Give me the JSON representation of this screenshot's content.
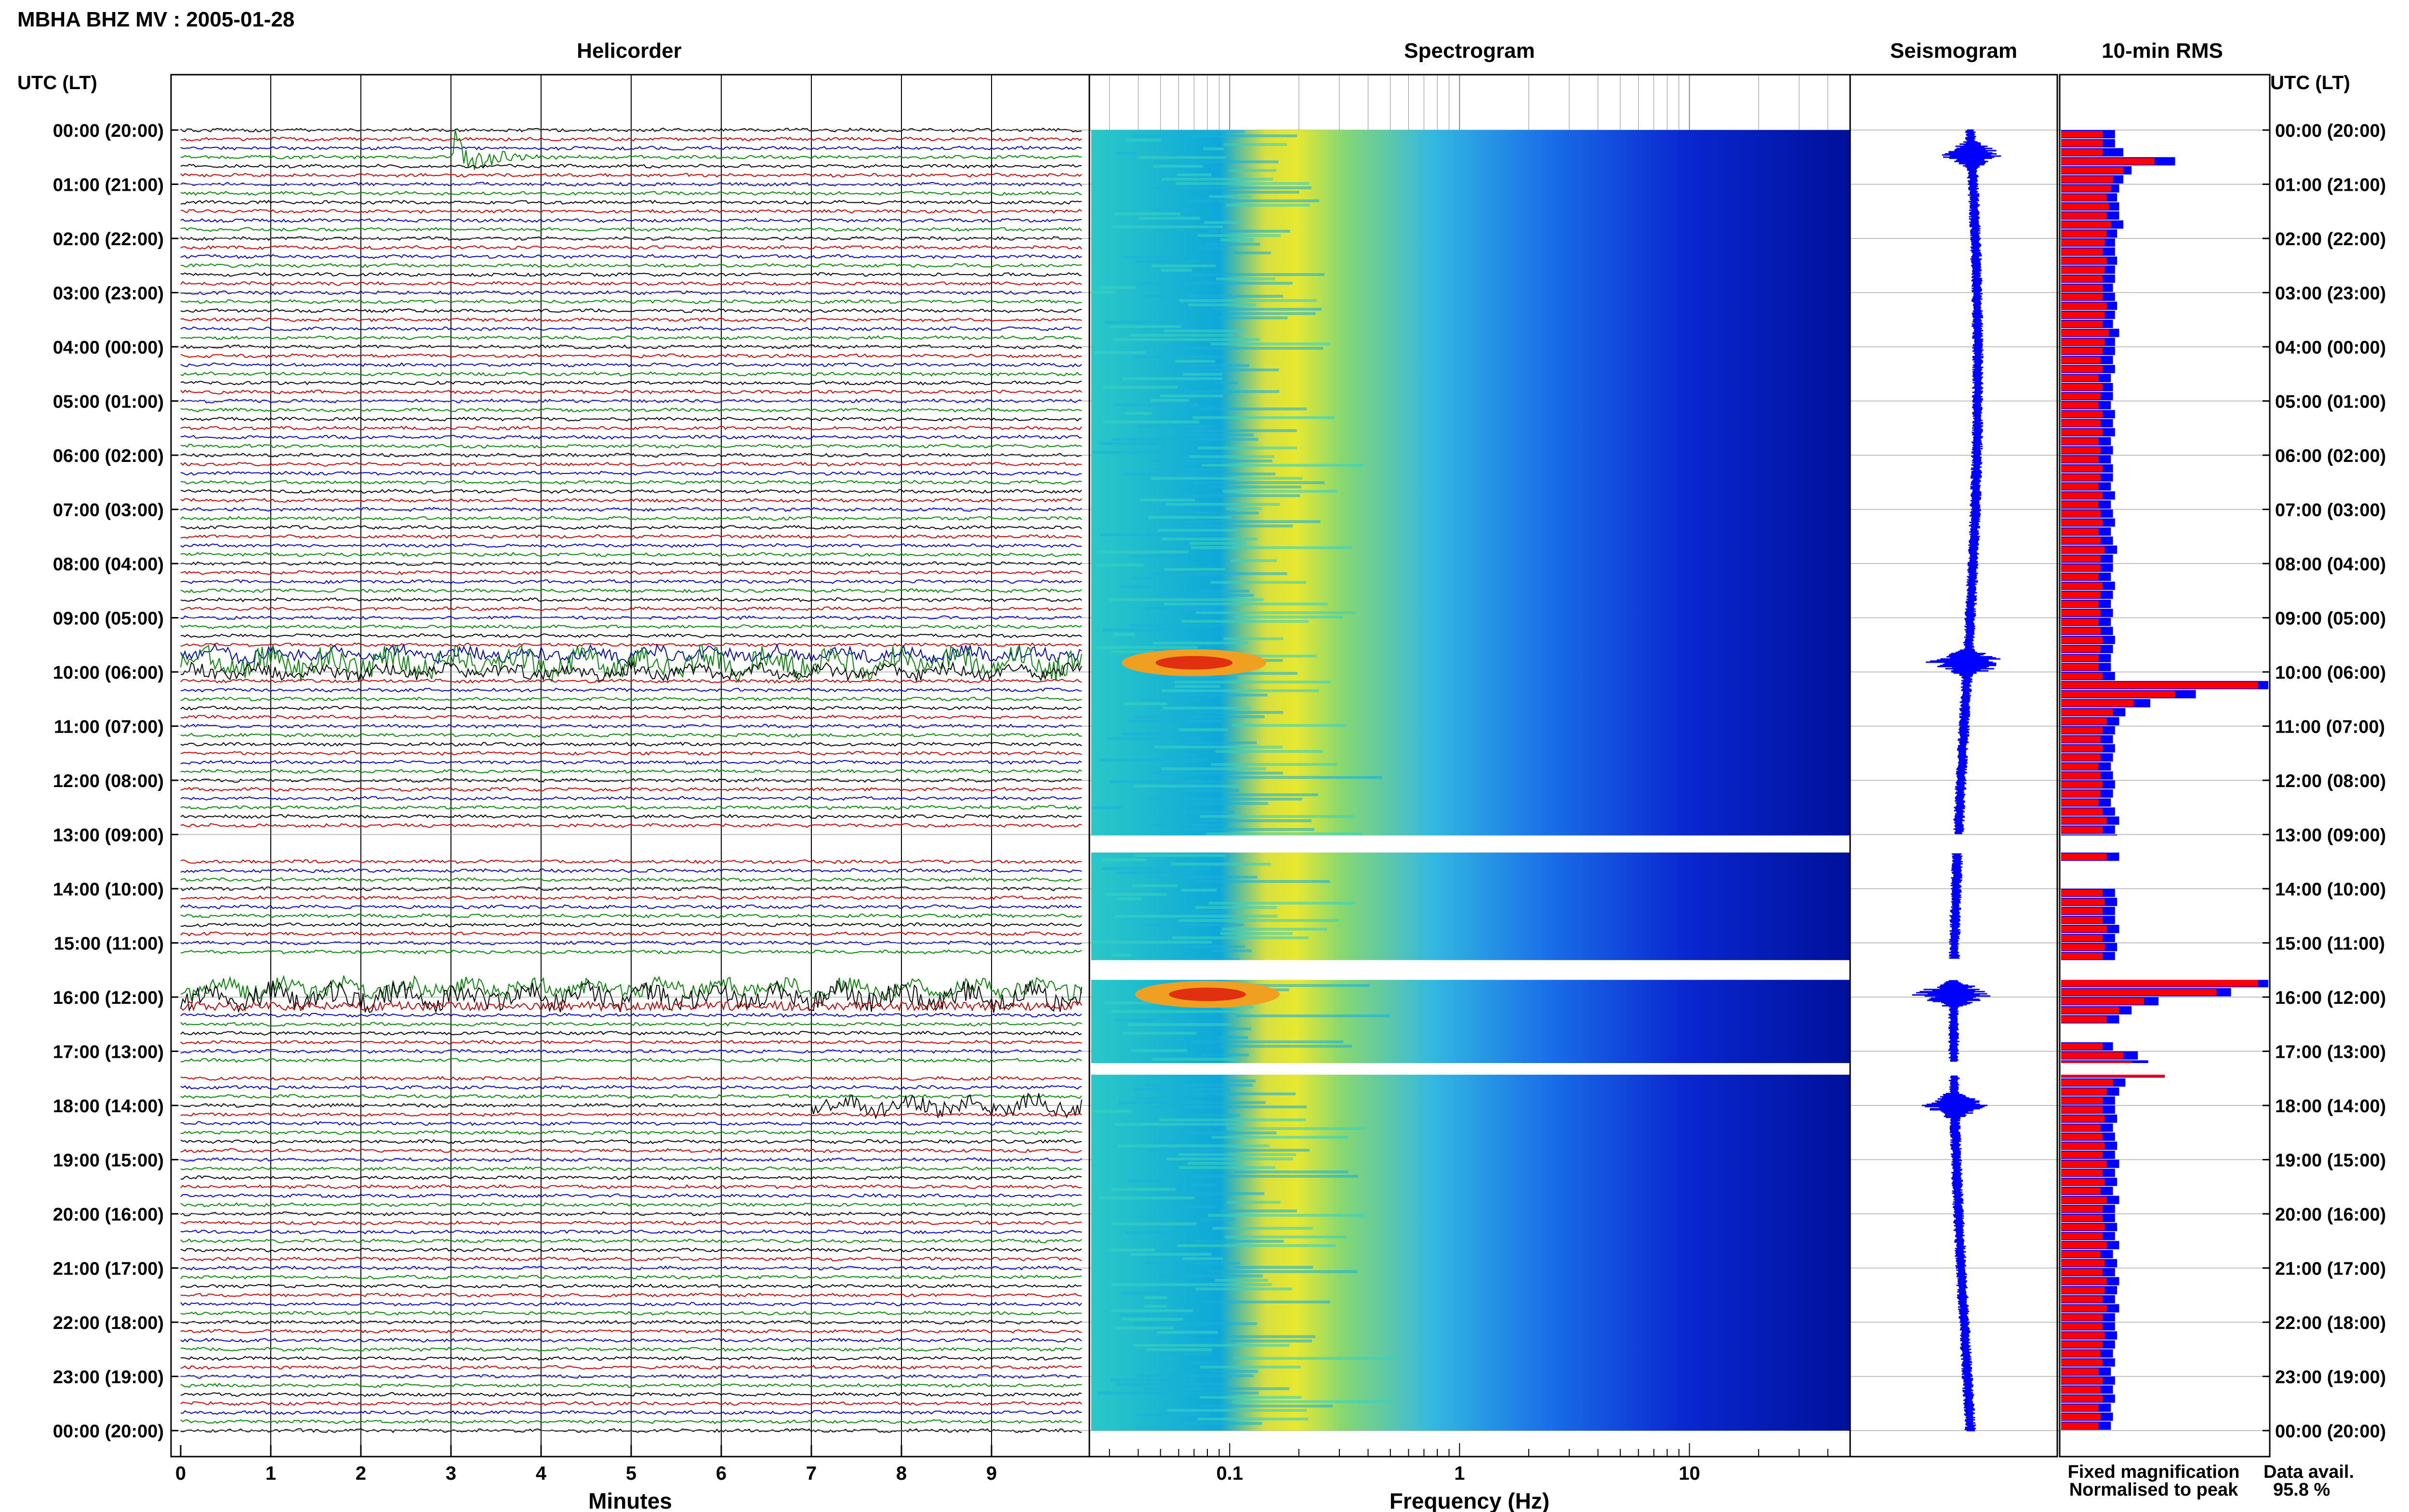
{
  "header": {
    "title": "MBHA BHZ MV : 2005-01-28"
  },
  "panels": {
    "helicorder": "Helicorder",
    "spectrogram": "Spectrogram",
    "seismogram": "Seismogram",
    "rms": "10-min RMS"
  },
  "axis": {
    "time_label_left": "UTC (LT)",
    "time_label_right": "UTC (LT)",
    "hour_ticks": [
      "00:00 (20:00)",
      "01:00 (21:00)",
      "02:00 (22:00)",
      "03:00 (23:00)",
      "04:00 (00:00)",
      "05:00 (01:00)",
      "06:00 (02:00)",
      "07:00 (03:00)",
      "08:00 (04:00)",
      "09:00 (05:00)",
      "10:00 (06:00)",
      "11:00 (07:00)",
      "12:00 (08:00)",
      "13:00 (09:00)",
      "14:00 (10:00)",
      "15:00 (11:00)",
      "16:00 (12:00)",
      "17:00 (13:00)",
      "18:00 (14:00)",
      "19:00 (15:00)",
      "20:00 (16:00)",
      "21:00 (17:00)",
      "22:00 (18:00)",
      "23:00 (19:00)",
      "00:00 (20:00)"
    ],
    "minutes_ticks": [
      "0",
      "1",
      "2",
      "3",
      "4",
      "5",
      "6",
      "7",
      "8",
      "9"
    ],
    "minutes_label": "Minutes",
    "freq_ticks": [
      "0.1",
      "1",
      "10"
    ],
    "freq_label": "Frequency (Hz)"
  },
  "legend": {
    "fixed": "Fixed magnification",
    "normalised": "Normalised to peak",
    "fixed_color": "#0000ff",
    "normalised_color": "#ff0000"
  },
  "data_avail": {
    "label": "Data avail.",
    "value": "95.8 %"
  },
  "chart_data": {
    "type": "heatmap",
    "title": "MBHA BHZ MV : 2005-01-28",
    "time_range_utc_hours": [
      0,
      24
    ],
    "helicorder_minutes_range": [
      0,
      10
    ],
    "freq_range_hz": [
      0.025,
      50
    ],
    "freq_scale": "log",
    "trace_colors": [
      "#000000",
      "#cc0000",
      "#0000cc",
      "#008800"
    ],
    "data_gaps_utc_hours": [
      [
        13.0,
        13.35
      ],
      [
        15.3,
        15.7
      ],
      [
        17.2,
        17.45
      ]
    ],
    "events": [
      {
        "utc_hour": 0.45,
        "type": "local event",
        "peak_freq_hz": 5
      },
      {
        "utc_hour": 9.83,
        "type": "teleseism",
        "peak_freq_hz": 0.07
      },
      {
        "utc_hour": 15.95,
        "type": "teleseism",
        "peak_freq_hz": 0.08
      },
      {
        "utc_hour": 18.0,
        "type": "regional event",
        "peak_freq_hz": 0.1
      }
    ],
    "rms_10min": {
      "series": [
        {
          "name": "Fixed magnification",
          "color": "#0000ff"
        },
        {
          "name": "Normalised to peak",
          "color": "#ff0000"
        }
      ],
      "bins_per_hour": 6,
      "normalised": [
        0.2,
        0.2,
        0.2,
        0.45,
        0.3,
        0.25,
        0.24,
        0.22,
        0.23,
        0.22,
        0.24,
        0.22,
        0.21,
        0.2,
        0.22,
        0.21,
        0.2,
        0.2,
        0.2,
        0.22,
        0.21,
        0.2,
        0.23,
        0.21,
        0.2,
        0.19,
        0.2,
        0.18,
        0.2,
        0.19,
        0.18,
        0.2,
        0.19,
        0.2,
        0.18,
        0.19,
        0.18,
        0.2,
        0.19,
        0.18,
        0.2,
        0.18,
        0.19,
        0.2,
        0.18,
        0.19,
        0.21,
        0.19,
        0.19,
        0.18,
        0.2,
        0.19,
        0.18,
        0.19,
        0.18,
        0.19,
        0.2,
        0.19,
        0.18,
        0.18,
        0.2,
        0.95,
        0.55,
        0.35,
        0.25,
        0.22,
        0.2,
        0.19,
        0.2,
        0.19,
        0.18,
        0.19,
        0.2,
        0.19,
        0.18,
        0.2,
        0.22,
        0.2,
        0.21,
        0.2,
        0.22,
        0,
        0,
        0,
        0.2,
        0.21,
        0.2,
        0.2,
        0.22,
        0.2,
        0.21,
        0.2,
        0,
        0,
        0.95,
        0.75,
        0.4,
        0.28,
        0.22,
        0,
        0,
        0.2,
        0.3,
        0.34,
        0.5,
        0.25,
        0.22,
        0.2,
        0.2,
        0.21,
        0.19,
        0.2,
        0.21,
        0.2,
        0.22,
        0.2,
        0.21,
        0.19,
        0.22,
        0.2,
        0.2,
        0.21,
        0.2,
        0.22,
        0.19,
        0.21,
        0.2,
        0.22,
        0.21,
        0.2,
        0.22,
        0.2,
        0.2,
        0.21,
        0.2,
        0.19,
        0.2,
        0.18,
        0.2,
        0.19,
        0.2,
        0.18,
        0.19,
        0.18
      ],
      "fixed": [
        0.26,
        0.26,
        0.3,
        0.55,
        0.34,
        0.3,
        0.28,
        0.27,
        0.28,
        0.28,
        0.3,
        0.27,
        0.26,
        0.26,
        0.27,
        0.26,
        0.26,
        0.25,
        0.26,
        0.27,
        0.26,
        0.25,
        0.28,
        0.26,
        0.26,
        0.25,
        0.26,
        0.24,
        0.25,
        0.25,
        0.24,
        0.26,
        0.25,
        0.26,
        0.24,
        0.25,
        0.24,
        0.25,
        0.25,
        0.24,
        0.26,
        0.24,
        0.25,
        0.26,
        0.24,
        0.25,
        0.27,
        0.25,
        0.25,
        0.24,
        0.26,
        0.25,
        0.24,
        0.25,
        0.24,
        0.25,
        0.26,
        0.25,
        0.24,
        0.24,
        0.26,
        1.0,
        0.65,
        0.43,
        0.31,
        0.28,
        0.26,
        0.25,
        0.26,
        0.25,
        0.24,
        0.25,
        0.26,
        0.25,
        0.24,
        0.26,
        0.28,
        0.26,
        0.27,
        0.26,
        0.28,
        0,
        0,
        0,
        0.26,
        0.27,
        0.26,
        0.26,
        0.28,
        0.26,
        0.27,
        0.26,
        0,
        0,
        1.0,
        0.82,
        0.47,
        0.34,
        0.28,
        0,
        0,
        0.25,
        0.37,
        0.42,
        0.5,
        0.31,
        0.28,
        0.26,
        0.26,
        0.27,
        0.25,
        0.26,
        0.27,
        0.26,
        0.28,
        0.26,
        0.27,
        0.25,
        0.28,
        0.26,
        0.26,
        0.27,
        0.26,
        0.28,
        0.25,
        0.27,
        0.26,
        0.28,
        0.27,
        0.26,
        0.28,
        0.26,
        0.26,
        0.27,
        0.26,
        0.25,
        0.26,
        0.24,
        0.26,
        0.25,
        0.26,
        0.24,
        0.25,
        0.24
      ]
    }
  }
}
